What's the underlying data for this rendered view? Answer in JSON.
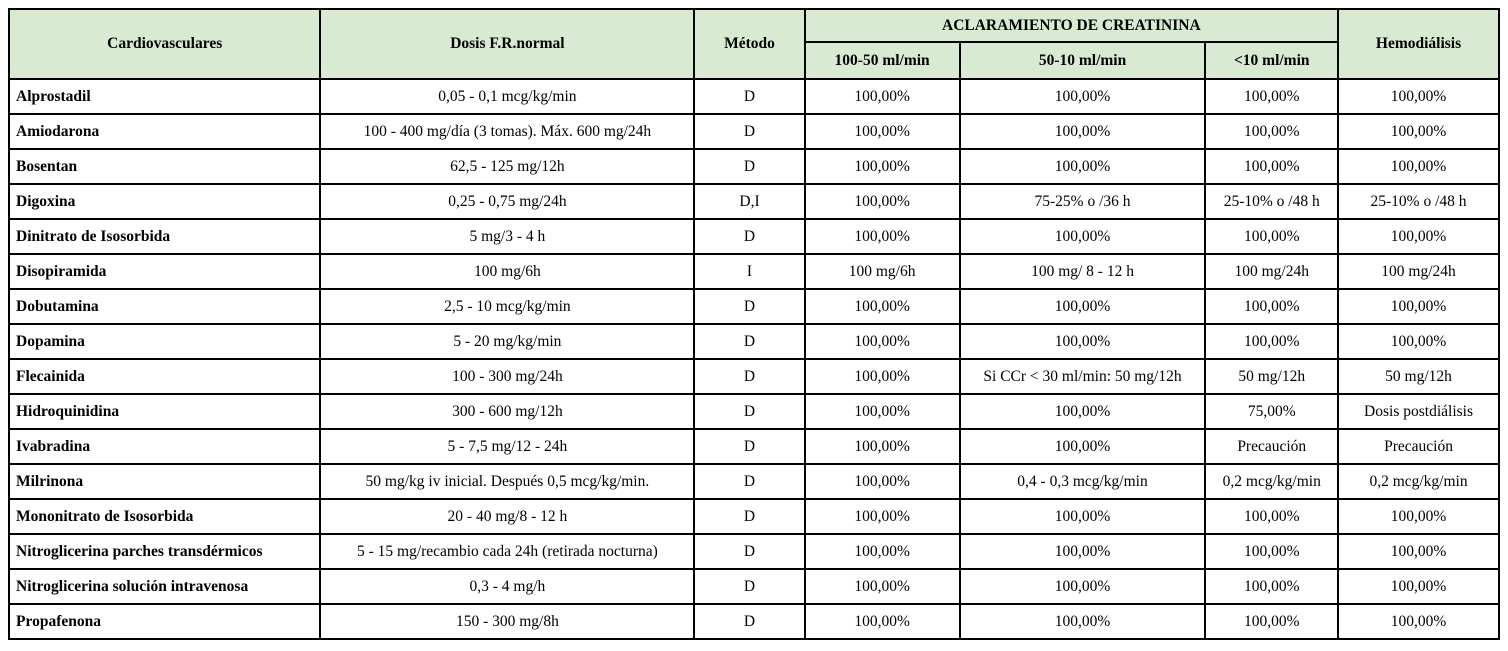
{
  "table": {
    "colors": {
      "header_bg": "#d9ead3",
      "border": "#000000",
      "body_bg": "#ffffff",
      "text": "#000000"
    },
    "headers": {
      "cardiovasculares": "Cardiovasculares",
      "dosis": "Dosis F.R.normal",
      "metodo": "Método",
      "creatinina_group": "ACLARAMIENTO DE CREATININA",
      "sub_100_50": "100-50 ml/min",
      "sub_50_10": "50-10 ml/min",
      "sub_lt10": "<10 ml/min",
      "hemodialisis": "Hemodiálisis"
    },
    "rows": [
      {
        "drug": "Alprostadil",
        "dose": "0,05 - 0,1 mcg/kg/min",
        "metodo": "D",
        "ccr_100_50": "100,00%",
        "ccr_50_10": "100,00%",
        "ccr_lt10": "100,00%",
        "hemodialisis": "100,00%"
      },
      {
        "drug": "Amiodarona",
        "dose": "100 - 400 mg/día (3 tomas). Máx. 600 mg/24h",
        "metodo": "D",
        "ccr_100_50": "100,00%",
        "ccr_50_10": "100,00%",
        "ccr_lt10": "100,00%",
        "hemodialisis": "100,00%"
      },
      {
        "drug": "Bosentan",
        "dose": "62,5 - 125 mg/12h",
        "metodo": "D",
        "ccr_100_50": "100,00%",
        "ccr_50_10": "100,00%",
        "ccr_lt10": "100,00%",
        "hemodialisis": "100,00%"
      },
      {
        "drug": "Digoxina",
        "dose": "0,25 - 0,75 mg/24h",
        "metodo": "D,I",
        "ccr_100_50": "100,00%",
        "ccr_50_10": "75-25% o /36 h",
        "ccr_lt10": "25-10% o /48 h",
        "hemodialisis": "25-10% o /48 h"
      },
      {
        "drug": "Dinitrato de Isosorbida",
        "dose": "5 mg/3 - 4 h",
        "metodo": "D",
        "ccr_100_50": "100,00%",
        "ccr_50_10": "100,00%",
        "ccr_lt10": "100,00%",
        "hemodialisis": "100,00%"
      },
      {
        "drug": "Disopiramida",
        "dose": "100 mg/6h",
        "metodo": "I",
        "ccr_100_50": "100 mg/6h",
        "ccr_50_10": "100 mg/ 8 - 12 h",
        "ccr_lt10": "100 mg/24h",
        "hemodialisis": "100 mg/24h"
      },
      {
        "drug": "Dobutamina",
        "dose": "2,5 - 10 mcg/kg/min",
        "metodo": "D",
        "ccr_100_50": "100,00%",
        "ccr_50_10": "100,00%",
        "ccr_lt10": "100,00%",
        "hemodialisis": "100,00%"
      },
      {
        "drug": "Dopamina",
        "dose": "5 - 20 mg/kg/min",
        "metodo": "D",
        "ccr_100_50": "100,00%",
        "ccr_50_10": "100,00%",
        "ccr_lt10": "100,00%",
        "hemodialisis": "100,00%"
      },
      {
        "drug": "Flecainida",
        "dose": "100 - 300 mg/24h",
        "metodo": "D",
        "ccr_100_50": "100,00%",
        "ccr_50_10": "Si CCr < 30 ml/min: 50 mg/12h",
        "ccr_lt10": "50 mg/12h",
        "hemodialisis": "50 mg/12h"
      },
      {
        "drug": "Hidroquinidina",
        "dose": "300 - 600 mg/12h",
        "metodo": "D",
        "ccr_100_50": "100,00%",
        "ccr_50_10": "100,00%",
        "ccr_lt10": "75,00%",
        "hemodialisis": "Dosis postdiálisis"
      },
      {
        "drug": "Ivabradina",
        "dose": "5 - 7,5 mg/12 - 24h",
        "metodo": "D",
        "ccr_100_50": "100,00%",
        "ccr_50_10": "100,00%",
        "ccr_lt10": "Precaución",
        "hemodialisis": "Precaución"
      },
      {
        "drug": "Milrinona",
        "dose": "50 mg/kg iv inicial. Después 0,5 mcg/kg/min.",
        "metodo": "D",
        "ccr_100_50": "100,00%",
        "ccr_50_10": "0,4 - 0,3 mcg/kg/min",
        "ccr_lt10": "0,2 mcg/kg/min",
        "hemodialisis": "0,2 mcg/kg/min"
      },
      {
        "drug": "Mononitrato de Isosorbida",
        "dose": "20 - 40 mg/8 - 12 h",
        "metodo": "D",
        "ccr_100_50": "100,00%",
        "ccr_50_10": "100,00%",
        "ccr_lt10": "100,00%",
        "hemodialisis": "100,00%"
      },
      {
        "drug": "Nitroglicerina parches transdérmicos",
        "dose": "5 - 15 mg/recambio cada 24h (retirada nocturna)",
        "metodo": "D",
        "ccr_100_50": "100,00%",
        "ccr_50_10": "100,00%",
        "ccr_lt10": "100,00%",
        "hemodialisis": "100,00%"
      },
      {
        "drug": "Nitroglicerina solución intravenosa",
        "dose": "0,3 - 4 mg/h",
        "metodo": "D",
        "ccr_100_50": "100,00%",
        "ccr_50_10": "100,00%",
        "ccr_lt10": "100,00%",
        "hemodialisis": "100,00%"
      },
      {
        "drug": "Propafenona",
        "dose": "150 - 300 mg/8h",
        "metodo": "D",
        "ccr_100_50": "100,00%",
        "ccr_50_10": "100,00%",
        "ccr_lt10": "100,00%",
        "hemodialisis": "100,00%"
      }
    ]
  }
}
